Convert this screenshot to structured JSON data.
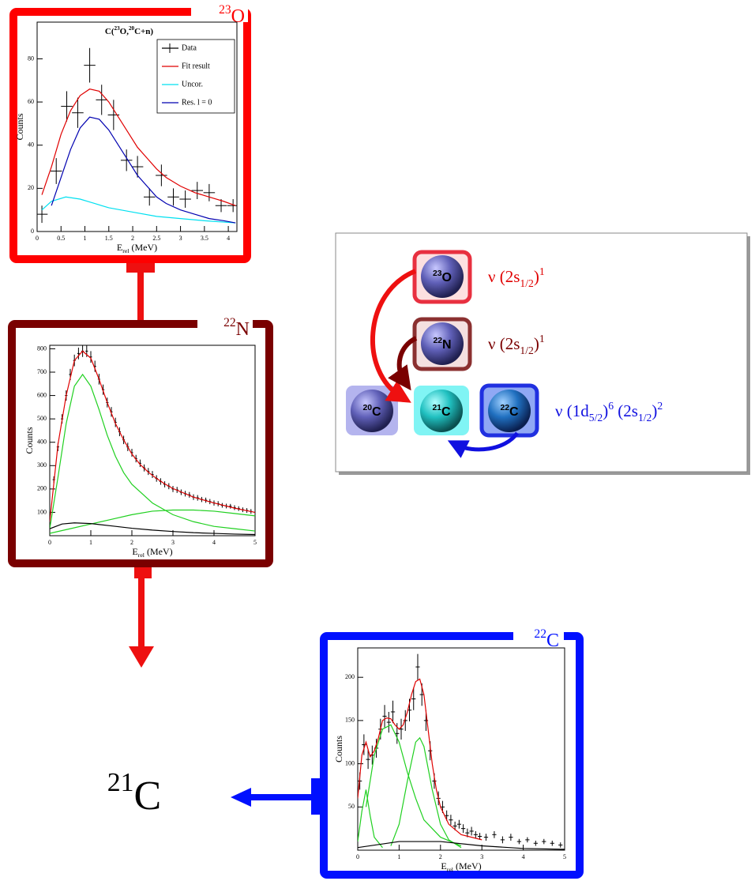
{
  "chart_data": [
    {
      "type": "scatter",
      "title": [
        {
          "text": "C("
        },
        {
          "text": "23",
          "shift": "sup"
        },
        {
          "text": "O,"
        },
        {
          "text": "20",
          "shift": "sup"
        },
        {
          "text": "C+n)"
        }
      ],
      "ylabel": "Counts",
      "xlabel": [
        {
          "text": "E"
        },
        {
          "text": "rel",
          "shift": "sub"
        },
        {
          "text": " (MeV)"
        }
      ],
      "xlim": [
        0,
        4.18
      ],
      "ylim": [
        0,
        97
      ],
      "xticks": [
        0,
        0.5,
        1,
        1.5,
        2,
        2.5,
        3,
        3.5,
        4
      ],
      "yticks": [
        0,
        20,
        40,
        60,
        80
      ],
      "legend": "upper right",
      "series": [
        {
          "name": "Data",
          "color": "#000000",
          "mode": "errorbar",
          "x": [
            0.1,
            0.4,
            0.62,
            0.85,
            1.1,
            1.35,
            1.6,
            1.87,
            2.1,
            2.35,
            2.6,
            2.85,
            3.1,
            3.35,
            3.6,
            3.85,
            4.1
          ],
          "values": [
            8,
            28,
            58,
            55,
            77,
            61,
            54,
            33,
            30,
            16,
            26,
            16,
            15,
            19,
            18,
            12,
            12
          ],
          "xerr": [
            0.12,
            0.12,
            0.12,
            0.12,
            0.12,
            0.12,
            0.12,
            0.12,
            0.12,
            0.12,
            0.12,
            0.12,
            0.12,
            0.12,
            0.12,
            0.12,
            0.12
          ],
          "yerr": [
            4,
            6,
            7,
            7,
            8,
            7,
            7,
            5,
            5,
            4,
            5,
            4,
            4,
            4,
            4,
            3,
            3
          ]
        },
        {
          "name": "Fit result",
          "color": "#e00000",
          "mode": "line",
          "x": [
            0.1,
            0.3,
            0.5,
            0.7,
            0.9,
            1.1,
            1.3,
            1.5,
            1.7,
            1.9,
            2.1,
            2.3,
            2.5,
            2.7,
            3.0,
            3.3,
            3.6,
            3.9,
            4.15
          ],
          "values": [
            17,
            30,
            45,
            56,
            63,
            66,
            65,
            60,
            53,
            46,
            39,
            34,
            29,
            25,
            21,
            18,
            16,
            14,
            12
          ]
        },
        {
          "name": "Uncor.",
          "color": "#00e0f0",
          "mode": "line",
          "x": [
            0.1,
            0.3,
            0.6,
            0.9,
            1.2,
            1.5,
            2.0,
            2.5,
            3.0,
            3.5,
            4.15
          ],
          "values": [
            10,
            14,
            16,
            15,
            13,
            11,
            9,
            7,
            6,
            5,
            4
          ]
        },
        {
          "name": "Res. l = 0",
          "color": "#0000b0",
          "mode": "line",
          "x": [
            0.3,
            0.5,
            0.7,
            0.9,
            1.1,
            1.3,
            1.5,
            1.7,
            1.9,
            2.1,
            2.3,
            2.5,
            2.7,
            3.0,
            3.3,
            3.6,
            3.9,
            4.15
          ],
          "values": [
            12,
            25,
            38,
            48,
            53,
            52,
            47,
            40,
            33,
            26,
            21,
            16,
            13,
            10,
            8,
            6,
            5,
            4
          ]
        }
      ]
    },
    {
      "type": "scatter",
      "ylabel": "Counts",
      "xlabel": [
        {
          "text": "E"
        },
        {
          "text": "rel",
          "shift": "sub"
        },
        {
          "text": " (MeV)"
        }
      ],
      "xlim": [
        0,
        5
      ],
      "ylim": [
        0,
        815
      ],
      "xticks": [
        0,
        1,
        2,
        3,
        4,
        5
      ],
      "yticks": [
        100,
        200,
        300,
        400,
        500,
        600,
        700,
        800
      ],
      "series": [
        {
          "color": "#000000",
          "mode": "errorbar",
          "x": [
            0.1,
            0.2,
            0.3,
            0.4,
            0.5,
            0.6,
            0.7,
            0.8,
            0.9,
            1.0,
            1.1,
            1.2,
            1.3,
            1.4,
            1.5,
            1.6,
            1.7,
            1.8,
            1.9,
            2.0,
            2.1,
            2.2,
            2.3,
            2.4,
            2.5,
            2.6,
            2.7,
            2.8,
            2.9,
            3.0,
            3.1,
            3.2,
            3.3,
            3.4,
            3.5,
            3.6,
            3.7,
            3.8,
            3.9,
            4.0,
            4.1,
            4.2,
            4.3,
            4.4,
            4.5,
            4.6,
            4.7,
            4.8,
            4.9,
            5.0
          ],
          "values": [
            240,
            380,
            500,
            600,
            690,
            750,
            780,
            790,
            790,
            765,
            725,
            670,
            625,
            570,
            530,
            485,
            445,
            410,
            380,
            355,
            330,
            310,
            290,
            275,
            262,
            245,
            232,
            220,
            212,
            200,
            196,
            186,
            180,
            175,
            165,
            162,
            155,
            152,
            146,
            140,
            137,
            130,
            127,
            126,
            120,
            116,
            111,
            108,
            104,
            100
          ],
          "xerr": [
            0.03,
            0.03,
            0.03,
            0.03,
            0.03,
            0.03,
            0.03,
            0.03,
            0.03,
            0.03,
            0.03,
            0.03,
            0.03,
            0.03,
            0.03,
            0.03,
            0.03,
            0.03,
            0.03,
            0.03,
            0.03,
            0.03,
            0.03,
            0.03,
            0.03,
            0.03,
            0.03,
            0.03,
            0.03,
            0.03,
            0.03,
            0.03,
            0.03,
            0.03,
            0.03,
            0.03,
            0.03,
            0.03,
            0.03,
            0.03,
            0.03,
            0.03,
            0.03,
            0.03,
            0.03,
            0.03,
            0.03,
            0.03,
            0.03,
            0.03
          ],
          "yerr": [
            14,
            18,
            20,
            22,
            24,
            25,
            25,
            25,
            25,
            25,
            24,
            23,
            22,
            21,
            21,
            20,
            19,
            18,
            18,
            17,
            16,
            16,
            15,
            15,
            15,
            14,
            14,
            13,
            13,
            13,
            13,
            12,
            12,
            12,
            12,
            12,
            11,
            11,
            11,
            11,
            11,
            10,
            10,
            10,
            10,
            10,
            10,
            10,
            10,
            10
          ]
        },
        {
          "color": "#e00000",
          "mode": "line",
          "x": [
            0,
            0.2,
            0.4,
            0.6,
            0.8,
            1.0,
            1.2,
            1.4,
            1.6,
            1.8,
            2.0,
            2.2,
            2.4,
            2.6,
            2.8,
            3.0,
            3.5,
            4.0,
            4.5,
            5.0
          ],
          "values": [
            60,
            390,
            600,
            750,
            790,
            760,
            670,
            570,
            480,
            410,
            350,
            305,
            272,
            245,
            222,
            202,
            165,
            140,
            118,
            100
          ]
        },
        {
          "color": "#20d020",
          "mode": "line",
          "x": [
            0,
            0.2,
            0.4,
            0.6,
            0.8,
            1.0,
            1.2,
            1.4,
            1.6,
            1.8,
            2.0,
            2.5,
            3.0,
            3.5,
            4.0,
            4.5,
            5.0
          ],
          "values": [
            30,
            250,
            480,
            640,
            690,
            640,
            540,
            430,
            340,
            270,
            220,
            140,
            90,
            60,
            40,
            30,
            20
          ]
        },
        {
          "color": "#20d020",
          "mode": "line",
          "x": [
            0,
            0.5,
            1,
            1.5,
            2,
            2.5,
            3,
            3.5,
            4,
            4.5,
            5
          ],
          "values": [
            10,
            30,
            50,
            70,
            90,
            105,
            110,
            110,
            105,
            95,
            85
          ]
        },
        {
          "color": "#000000",
          "mode": "line",
          "x": [
            0,
            0.3,
            0.6,
            1,
            1.5,
            2,
            2.5,
            3,
            3.5,
            4,
            4.5,
            5
          ],
          "values": [
            30,
            50,
            55,
            52,
            42,
            32,
            24,
            18,
            13,
            10,
            7,
            5
          ]
        }
      ]
    },
    {
      "type": "scatter",
      "ylabel": "Counts",
      "xlabel": [
        {
          "text": "E"
        },
        {
          "text": "rel",
          "shift": "sub"
        },
        {
          "text": " (MeV)"
        }
      ],
      "xlim": [
        0,
        5
      ],
      "ylim": [
        0,
        234
      ],
      "xticks": [
        0,
        1,
        2,
        3,
        4,
        5
      ],
      "yticks": [
        50,
        100,
        150,
        200
      ],
      "series": [
        {
          "color": "#000000",
          "mode": "errorbar",
          "x": [
            0.05,
            0.15,
            0.25,
            0.35,
            0.45,
            0.55,
            0.65,
            0.75,
            0.85,
            0.95,
            1.05,
            1.15,
            1.25,
            1.35,
            1.45,
            1.55,
            1.65,
            1.75,
            1.85,
            1.95,
            2.05,
            2.15,
            2.25,
            2.35,
            2.45,
            2.55,
            2.65,
            2.75,
            2.85,
            2.95,
            3.1,
            3.3,
            3.5,
            3.7,
            3.9,
            4.1,
            4.3,
            4.5,
            4.7,
            4.9
          ],
          "values": [
            80,
            122,
            105,
            110,
            118,
            140,
            155,
            148,
            160,
            135,
            140,
            150,
            162,
            175,
            212,
            180,
            150,
            115,
            80,
            60,
            50,
            40,
            35,
            28,
            30,
            25,
            20,
            22,
            18,
            16,
            15,
            18,
            12,
            15,
            10,
            12,
            8,
            10,
            8,
            6
          ],
          "xerr": [
            0.05,
            0.05,
            0.05,
            0.05,
            0.05,
            0.05,
            0.05,
            0.05,
            0.05,
            0.05,
            0.05,
            0.05,
            0.05,
            0.05,
            0.05,
            0.05,
            0.05,
            0.05,
            0.05,
            0.05,
            0.05,
            0.05,
            0.05,
            0.05,
            0.05,
            0.05,
            0.05,
            0.05,
            0.05,
            0.05,
            0.05,
            0.05,
            0.05,
            0.05,
            0.05,
            0.05,
            0.05,
            0.05,
            0.05,
            0.05
          ],
          "yerr": [
            10,
            12,
            11,
            11,
            11,
            12,
            13,
            12,
            13,
            12,
            12,
            12,
            13,
            13,
            15,
            13,
            12,
            11,
            9,
            8,
            7,
            6,
            6,
            5,
            5,
            5,
            5,
            5,
            4,
            4,
            4,
            4,
            4,
            4,
            3,
            3,
            3,
            3,
            3,
            3
          ]
        },
        {
          "color": "#e00000",
          "mode": "line",
          "x": [
            0,
            0.1,
            0.2,
            0.3,
            0.4,
            0.5,
            0.6,
            0.7,
            0.8,
            0.9,
            1.0,
            1.1,
            1.2,
            1.3,
            1.4,
            1.5,
            1.6,
            1.7,
            1.8,
            1.9,
            2.0,
            2.2,
            2.5,
            3.0
          ],
          "values": [
            60,
            110,
            125,
            108,
            115,
            130,
            150,
            153,
            152,
            145,
            140,
            145,
            160,
            180,
            195,
            198,
            180,
            140,
            100,
            70,
            50,
            30,
            18,
            12
          ]
        },
        {
          "color": "#20d020",
          "mode": "line",
          "x": [
            0,
            0.1,
            0.2,
            0.3,
            0.4,
            0.6
          ],
          "values": [
            10,
            45,
            70,
            40,
            15,
            3
          ]
        },
        {
          "color": "#20d020",
          "mode": "line",
          "x": [
            0.2,
            0.4,
            0.6,
            0.8,
            1.0,
            1.2,
            1.4,
            1.6,
            2.0,
            2.5
          ],
          "values": [
            50,
            110,
            140,
            145,
            125,
            90,
            60,
            35,
            15,
            5
          ]
        },
        {
          "color": "#20d020",
          "mode": "line",
          "x": [
            0.8,
            1.0,
            1.2,
            1.4,
            1.5,
            1.6,
            1.8,
            2.0,
            2.2,
            2.5
          ],
          "values": [
            5,
            30,
            80,
            125,
            130,
            120,
            70,
            30,
            12,
            3
          ]
        },
        {
          "color": "#000000",
          "mode": "line",
          "x": [
            0,
            1,
            2,
            3,
            4,
            5
          ],
          "values": [
            3,
            10,
            10,
            5,
            2,
            1
          ]
        }
      ]
    }
  ],
  "frame_labels": [
    [
      {
        "text": "23",
        "shift": "sup"
      },
      {
        "text": "O"
      }
    ],
    [
      {
        "text": "22",
        "shift": "sup"
      },
      {
        "text": "N"
      }
    ],
    [
      {
        "text": "22",
        "shift": "sup"
      },
      {
        "text": "C"
      }
    ]
  ],
  "result_label": [
    {
      "text": "21",
      "shift": "sup"
    },
    {
      "text": "C"
    }
  ],
  "diagram": {
    "nodes": [
      [
        {
          "text": "23",
          "shift": "sup"
        },
        {
          "text": "O"
        }
      ],
      [
        {
          "text": "22",
          "shift": "sup"
        },
        {
          "text": "N"
        }
      ],
      [
        {
          "text": "20",
          "shift": "sup"
        },
        {
          "text": "C"
        }
      ],
      [
        {
          "text": "21",
          "shift": "sup"
        },
        {
          "text": "C"
        }
      ],
      [
        {
          "text": "22",
          "shift": "sup"
        },
        {
          "text": "C"
        }
      ]
    ],
    "configs": [
      {
        "color": "#e00000",
        "runs": [
          {
            "text": "ν (2s"
          },
          {
            "text": "1/2",
            "shift": "sub"
          },
          {
            "text": ")"
          },
          {
            "text": "1",
            "shift": "sup"
          }
        ]
      },
      {
        "color": "#7a0000",
        "runs": [
          {
            "text": "ν (2s"
          },
          {
            "text": "1/2",
            "shift": "sub"
          },
          {
            "text": ")"
          },
          {
            "text": "1",
            "shift": "sup"
          }
        ]
      },
      {
        "color": "#1010e0",
        "runs": [
          {
            "text": "ν (1d"
          },
          {
            "text": "5/2",
            "shift": "sub"
          },
          {
            "text": ")"
          },
          {
            "text": "6",
            "shift": "sup"
          },
          {
            "text": " (2s"
          },
          {
            "text": "1/2",
            "shift": "sub"
          },
          {
            "text": ")"
          },
          {
            "text": "2",
            "shift": "sup"
          }
        ]
      }
    ]
  }
}
